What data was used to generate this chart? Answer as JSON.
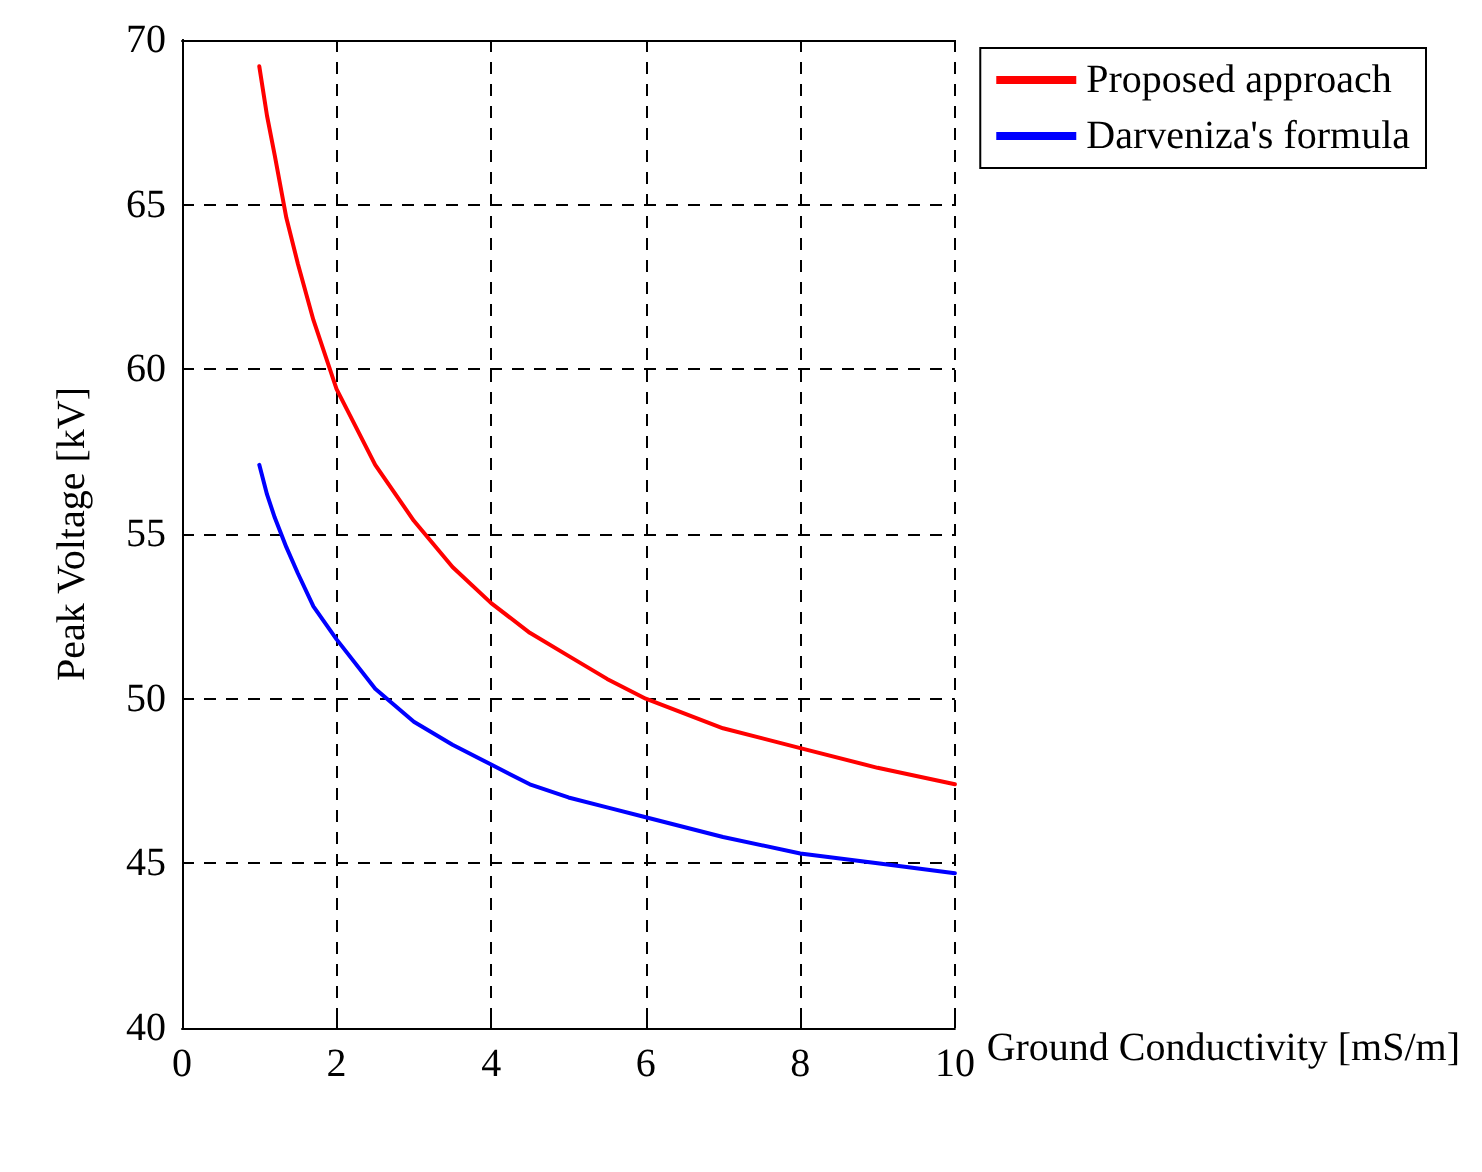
{
  "chart_data": {
    "type": "line",
    "xlabel": "Ground Conductivity [mS/m]",
    "ylabel": "Peak Voltage [kV]",
    "xlim": [
      0,
      10
    ],
    "xticks": [
      0,
      2,
      4,
      6,
      8,
      10
    ],
    "ylim": [
      40,
      70
    ],
    "yticks": [
      40,
      45,
      50,
      55,
      60,
      65,
      70
    ],
    "grid": true,
    "legend": "top right",
    "line_style": "solid",
    "marker": "none",
    "series": [
      {
        "name": "Proposed approach",
        "color": "#ff0000",
        "x": [
          1,
          1.1,
          1.2,
          1.35,
          1.5,
          1.7,
          2,
          2.5,
          3,
          3.5,
          4,
          4.5,
          5,
          5.5,
          6,
          7,
          8,
          9,
          10
        ],
        "values": [
          69.2,
          67.7,
          66.5,
          64.6,
          63.2,
          61.5,
          59.4,
          57.1,
          55.4,
          54.0,
          52.9,
          52.0,
          51.3,
          50.6,
          50.0,
          49.1,
          48.5,
          47.9,
          47.4
        ]
      },
      {
        "name": "Darveniza's formula",
        "color": "#0000ff",
        "x": [
          1,
          1.1,
          1.2,
          1.35,
          1.5,
          1.7,
          2,
          2.5,
          3,
          3.5,
          4,
          4.5,
          5,
          5.5,
          6,
          7,
          8,
          9,
          10
        ],
        "values": [
          57.1,
          56.2,
          55.5,
          54.6,
          53.8,
          52.8,
          51.8,
          50.3,
          49.3,
          48.6,
          48.0,
          47.4,
          47.0,
          46.7,
          46.4,
          45.8,
          45.3,
          45.0,
          44.7
        ]
      }
    ]
  }
}
